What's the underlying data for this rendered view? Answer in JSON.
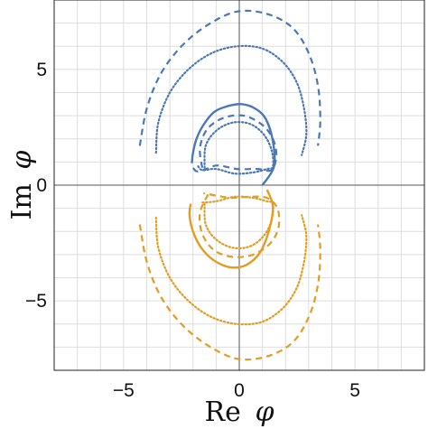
{
  "chart_data": {
    "type": "line",
    "title": "",
    "xlabel": {
      "roman": "Re",
      "italic": "φ"
    },
    "ylabel": {
      "roman": "Im",
      "italic": "φ"
    },
    "xlim": [
      -8.0,
      8.0
    ],
    "ylim": [
      -8.0,
      8.0
    ],
    "xticks": [
      -5,
      0,
      5
    ],
    "yticks": [
      -5,
      0,
      5
    ],
    "xtick_labels": [
      "−5",
      "0",
      "5"
    ],
    "ytick_labels": [
      "−5",
      "0",
      "5"
    ],
    "grid": true,
    "legend": "none",
    "colors": {
      "blue": "#4a78b6",
      "orange": "#e29d22",
      "grid": "#dedede",
      "zero_axis": "#555555",
      "frame": "#222222"
    },
    "series": [
      {
        "color": "blue",
        "style": "solid",
        "x": [
          1.0,
          1.5,
          1.45,
          1.15,
          0.7,
          0.1,
          -0.55,
          -1.1,
          -1.55,
          -1.85,
          -2.0,
          -2.05
        ],
        "y": [
          0.0,
          0.8,
          1.9,
          2.85,
          3.3,
          3.5,
          3.4,
          3.15,
          2.6,
          2.0,
          1.4,
          0.95
        ]
      },
      {
        "color": "blue",
        "style": "dashed",
        "x": [
          -1.6,
          -1.7,
          -1.4,
          -0.7,
          0.2,
          1.0,
          1.45,
          1.6,
          1.4,
          0.8,
          -0.1,
          -0.95,
          -1.55,
          -1.85,
          -2.0
        ],
        "y": [
          0.75,
          1.6,
          2.4,
          2.9,
          3.0,
          2.6,
          2.0,
          1.3,
          0.65,
          0.7,
          0.7,
          0.85,
          0.65,
          0.6,
          0.75
        ]
      },
      {
        "color": "blue",
        "style": "dotted",
        "x": [
          -1.5,
          -1.45,
          -1.0,
          -0.3,
          0.45,
          1.05,
          1.4,
          1.45,
          1.2,
          0.6,
          -0.2,
          -1.0,
          -1.6,
          -1.8
        ],
        "y": [
          0.75,
          1.7,
          2.35,
          2.7,
          2.65,
          2.2,
          1.5,
          0.8,
          0.7,
          0.55,
          0.5,
          0.7,
          0.65,
          0.85
        ]
      },
      {
        "color": "blue",
        "style": "dashed",
        "x": [
          -4.3,
          -4.0,
          -3.4,
          -2.5,
          -1.4,
          -0.1,
          1.2,
          2.3,
          3.0,
          3.4,
          3.5,
          3.4
        ],
        "y": [
          1.7,
          3.3,
          4.8,
          6.0,
          6.9,
          7.5,
          7.4,
          6.8,
          5.7,
          4.3,
          2.8,
          1.7
        ]
      },
      {
        "color": "blue",
        "style": "dotted",
        "x": [
          -3.6,
          -3.5,
          -3.0,
          -2.2,
          -1.2,
          -0.1,
          1.0,
          1.9,
          2.5,
          2.8,
          2.9,
          2.7
        ],
        "y": [
          1.4,
          2.7,
          4.0,
          5.0,
          5.7,
          6.0,
          5.9,
          5.3,
          4.4,
          3.3,
          2.2,
          1.3
        ]
      },
      {
        "color": "orange",
        "style": "solid",
        "x": [
          1.2,
          1.45,
          1.3,
          0.9,
          0.3,
          -0.4,
          -1.1,
          -1.65,
          -2.0,
          -2.15,
          -2.1
        ],
        "y": [
          -0.2,
          -0.9,
          -1.9,
          -2.9,
          -3.45,
          -3.55,
          -3.25,
          -2.7,
          -2.0,
          -1.3,
          -0.8
        ]
      },
      {
        "color": "orange",
        "style": "dashed",
        "x": [
          -1.35,
          -1.7,
          -1.6,
          -1.1,
          -0.3,
          0.6,
          1.35,
          1.7,
          1.65,
          1.2,
          0.5,
          -0.3,
          -1.0,
          -1.55
        ],
        "y": [
          -0.4,
          -1.2,
          -2.1,
          -2.8,
          -3.1,
          -3.0,
          -2.5,
          -1.8,
          -1.0,
          -0.55,
          -0.5,
          -0.55,
          -0.45,
          -0.35
        ]
      },
      {
        "color": "orange",
        "style": "dotted",
        "x": [
          -1.5,
          -1.45,
          -1.0,
          -0.3,
          0.45,
          1.05,
          1.4,
          1.45,
          1.2,
          0.6,
          -0.2,
          -1.0,
          -1.6
        ],
        "y": [
          -0.8,
          -1.7,
          -2.35,
          -2.7,
          -2.65,
          -2.2,
          -1.5,
          -0.8,
          -0.7,
          -0.55,
          -0.5,
          -0.7,
          -0.75
        ]
      },
      {
        "color": "orange",
        "style": "dashed",
        "x": [
          -4.3,
          -4.0,
          -3.4,
          -2.5,
          -1.4,
          -0.1,
          1.2,
          2.3,
          3.0,
          3.4,
          3.5,
          3.4
        ],
        "y": [
          -1.7,
          -3.3,
          -4.8,
          -6.0,
          -6.9,
          -7.5,
          -7.4,
          -6.8,
          -5.7,
          -4.3,
          -2.8,
          -1.7
        ]
      },
      {
        "color": "orange",
        "style": "dotted",
        "x": [
          -3.6,
          -3.5,
          -3.0,
          -2.2,
          -1.2,
          -0.1,
          1.0,
          1.9,
          2.5,
          2.8,
          2.9,
          2.7
        ],
        "y": [
          -1.4,
          -2.7,
          -4.0,
          -5.0,
          -5.7,
          -6.0,
          -5.9,
          -5.3,
          -4.4,
          -3.3,
          -2.2,
          -1.3
        ]
      }
    ]
  }
}
